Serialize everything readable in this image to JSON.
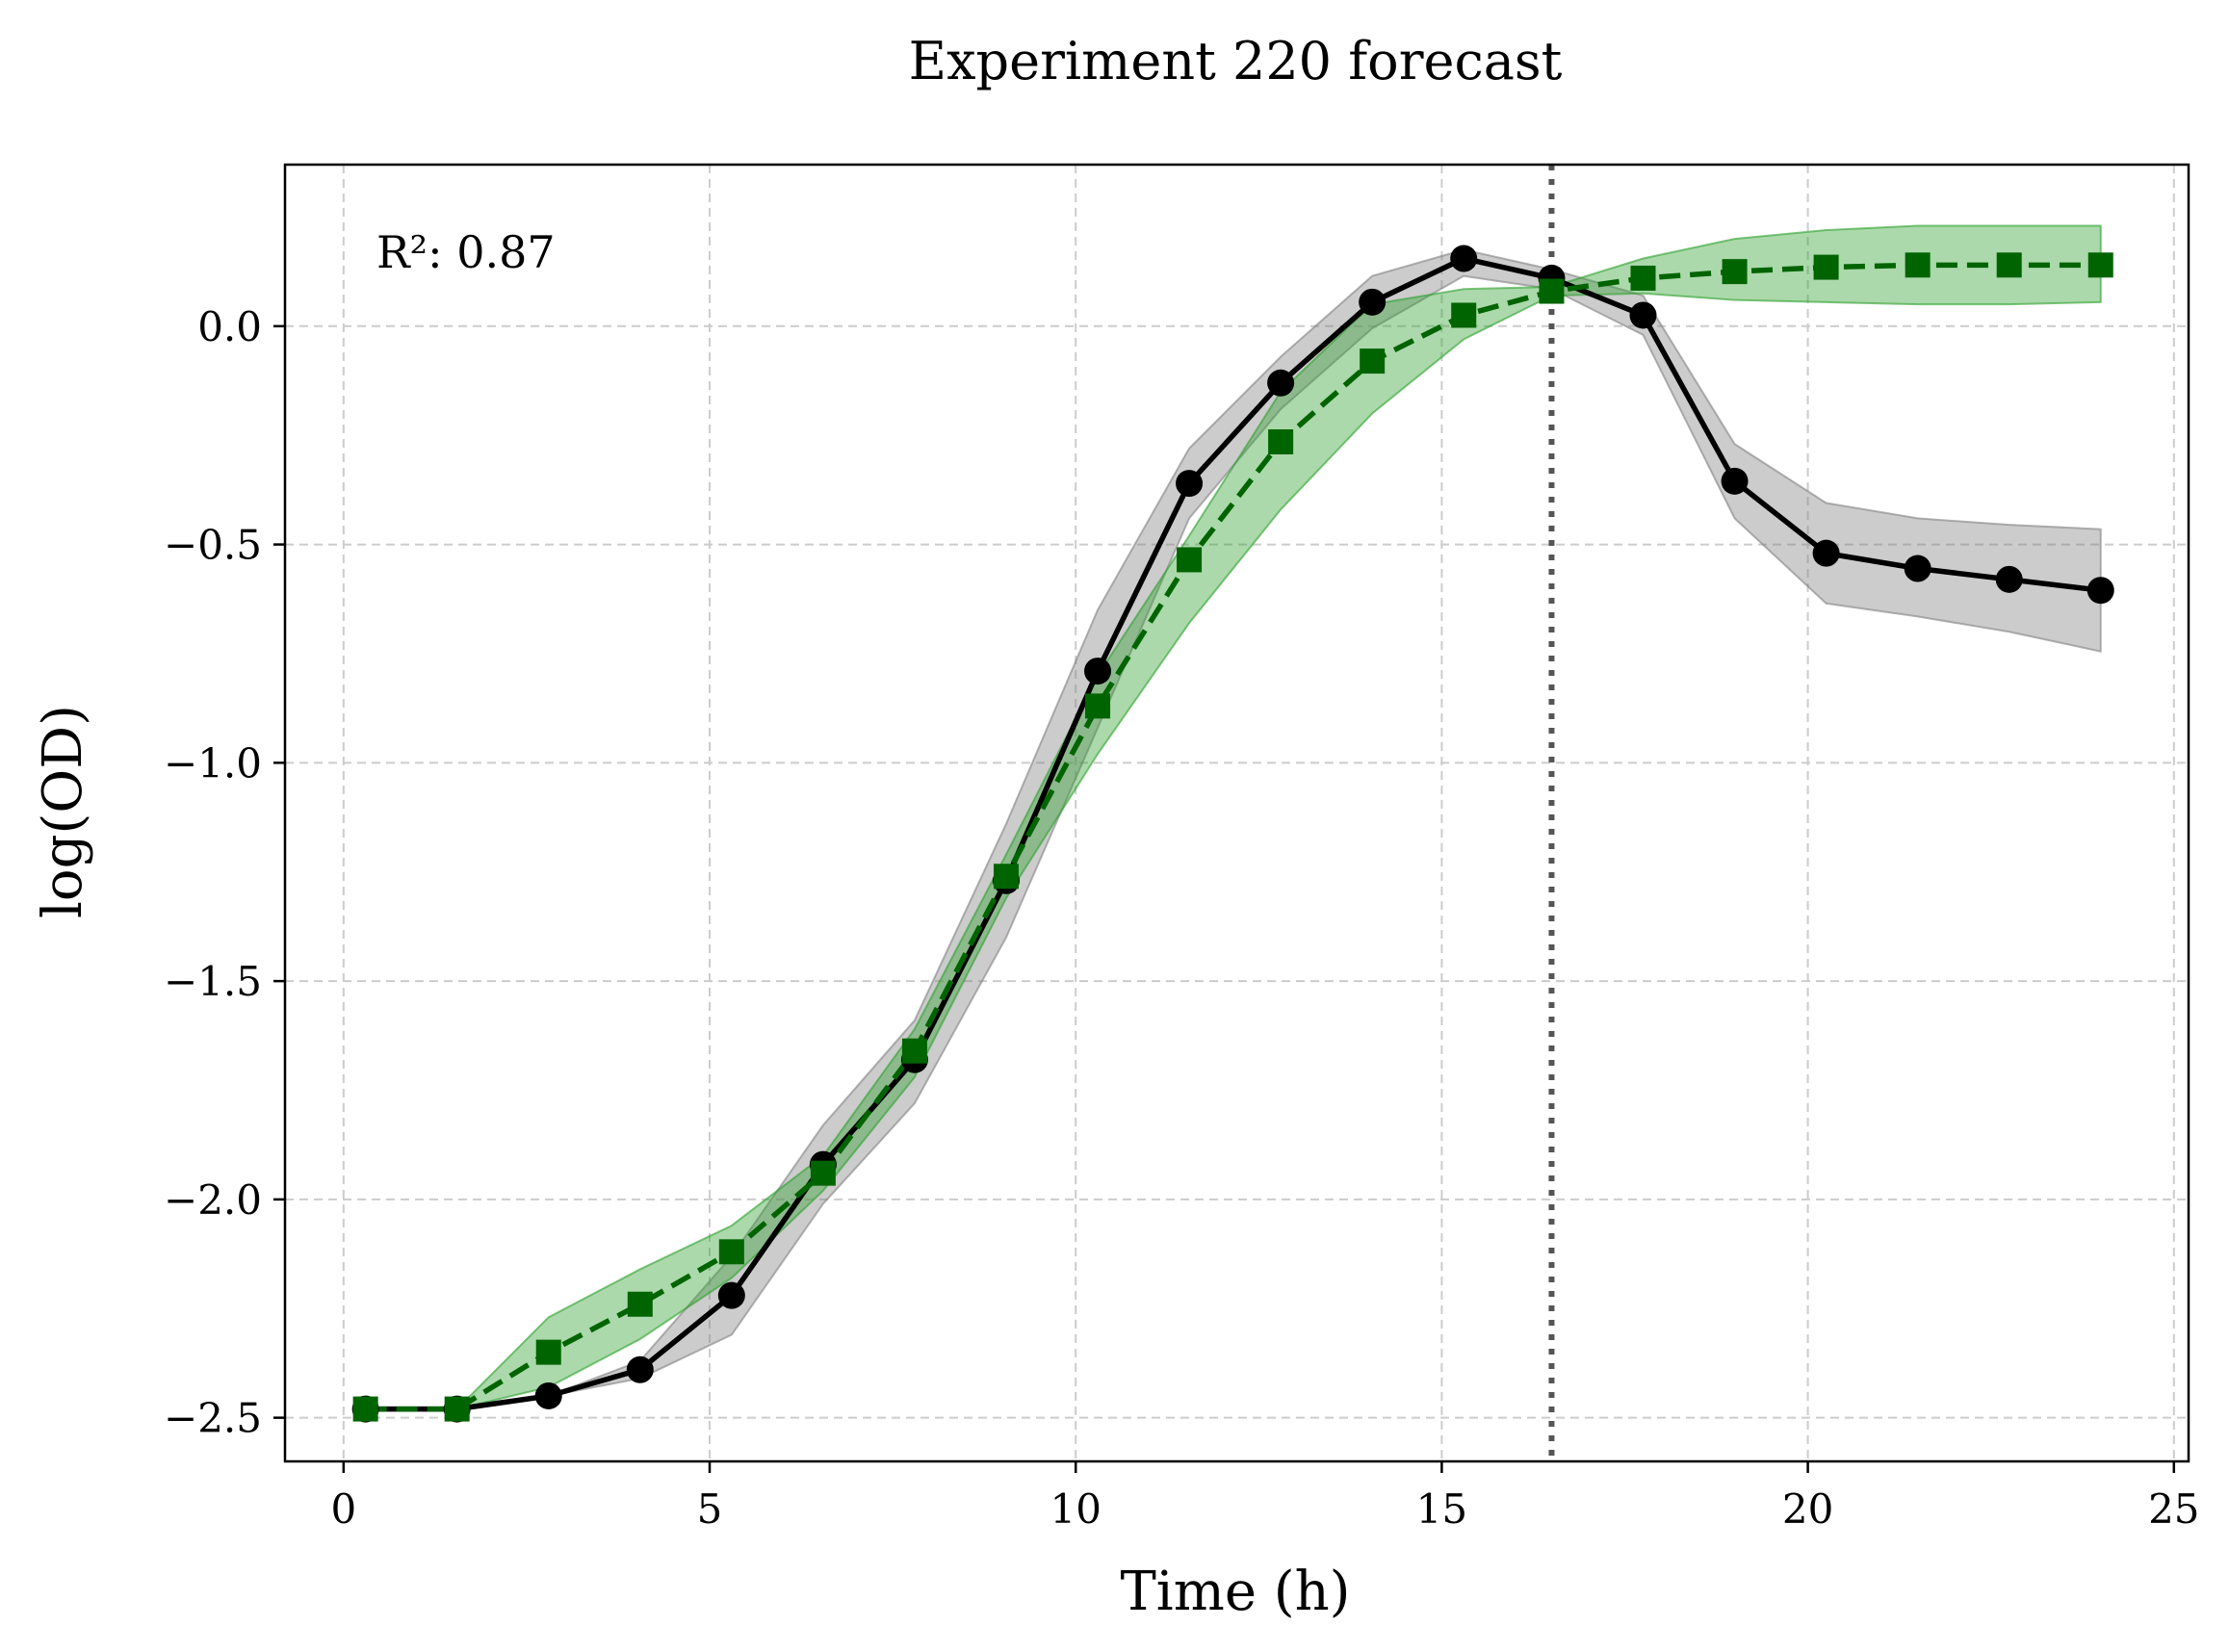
{
  "chart_data": {
    "type": "line",
    "title": "Experiment 220 forecast",
    "xlabel": "Time (h)",
    "ylabel": "log(OD)",
    "xlim": [
      -0.8,
      25.2
    ],
    "ylim": [
      -2.6,
      0.37
    ],
    "xticks": [
      0,
      5,
      10,
      15,
      20,
      25
    ],
    "yticks": [
      -2.5,
      -2.0,
      -1.5,
      -1.0,
      -0.5,
      0.0
    ],
    "ytick_labels": [
      "−2.5",
      "−2.0",
      "−1.5",
      "−1.0",
      "−0.5",
      "0.0"
    ],
    "grid": true,
    "legend": false,
    "annotation": "R²: 0.87",
    "forecast_start": 16.5,
    "series": [
      {
        "style": "solid-circle",
        "color": "#000000",
        "band_color": "#808080",
        "x": [
          0.3,
          1.55,
          2.8,
          4.05,
          5.3,
          6.55,
          7.8,
          9.05,
          10.3,
          11.55,
          12.8,
          14.05,
          15.3,
          16.5,
          17.75,
          19.0,
          20.25,
          21.5,
          22.75,
          24.0
        ],
        "y": [
          -2.48,
          -2.48,
          -2.45,
          -2.39,
          -2.22,
          -1.92,
          -1.68,
          -1.27,
          -0.79,
          -0.36,
          -0.13,
          0.055,
          0.155,
          0.11,
          0.025,
          -0.355,
          -0.52,
          -0.555,
          -0.58,
          -0.605
        ],
        "lower": [
          -2.48,
          -2.48,
          -2.45,
          -2.41,
          -2.31,
          -2.01,
          -1.78,
          -1.4,
          -0.92,
          -0.44,
          -0.19,
          -0.005,
          0.115,
          0.085,
          -0.02,
          -0.44,
          -0.635,
          -0.665,
          -0.7,
          -0.745
        ],
        "upper": [
          -2.48,
          -2.48,
          -2.45,
          -2.37,
          -2.13,
          -1.83,
          -1.59,
          -1.14,
          -0.65,
          -0.28,
          -0.07,
          0.115,
          0.175,
          0.13,
          0.07,
          -0.27,
          -0.405,
          -0.44,
          -0.455,
          -0.465
        ]
      },
      {
        "style": "dashed-square",
        "color": "#006400",
        "band_color": "#2ca02c",
        "x": [
          0.3,
          1.55,
          2.8,
          4.05,
          5.3,
          6.55,
          7.8,
          9.05,
          10.3,
          11.55,
          12.8,
          14.05,
          15.3,
          16.5,
          17.75,
          19.0,
          20.25,
          21.5,
          22.75,
          24.0
        ],
        "y": [
          -2.48,
          -2.48,
          -2.35,
          -2.24,
          -2.12,
          -1.94,
          -1.66,
          -1.26,
          -0.87,
          -0.535,
          -0.265,
          -0.08,
          0.025,
          0.08,
          0.11,
          0.125,
          0.135,
          0.14,
          0.14,
          0.14
        ],
        "lower": [
          -2.48,
          -2.48,
          -2.43,
          -2.32,
          -2.18,
          -1.98,
          -1.72,
          -1.31,
          -0.98,
          -0.68,
          -0.42,
          -0.2,
          -0.03,
          0.07,
          0.075,
          0.06,
          0.055,
          0.05,
          0.05,
          0.055
        ],
        "upper": [
          -2.48,
          -2.48,
          -2.27,
          -2.16,
          -2.06,
          -1.9,
          -1.61,
          -1.21,
          -0.8,
          -0.48,
          -0.15,
          0.05,
          0.085,
          0.09,
          0.155,
          0.2,
          0.22,
          0.23,
          0.23,
          0.23
        ]
      }
    ]
  }
}
